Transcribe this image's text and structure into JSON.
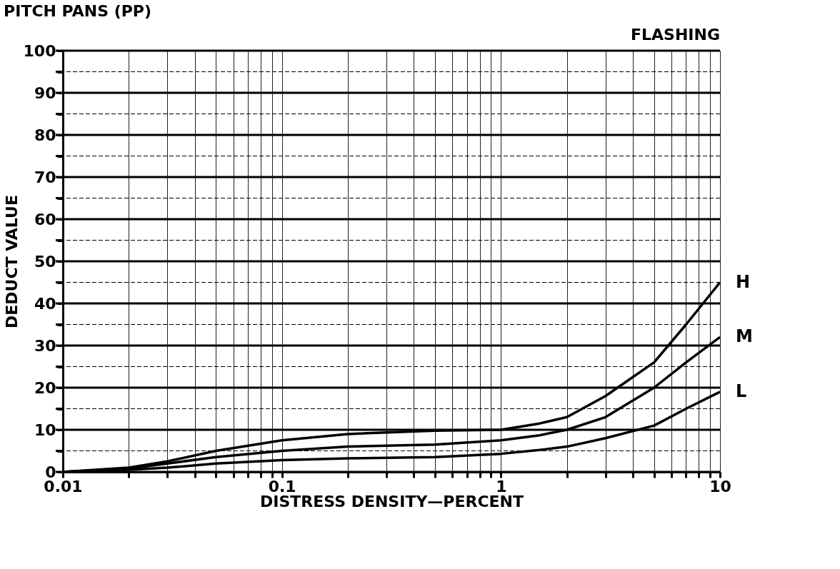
{
  "chart_data": {
    "type": "line",
    "title": "PITCH PANS (PP)",
    "annotations": [
      "FLASHING"
    ],
    "xlabel": "DISTRESS DENSITY—PERCENT",
    "ylabel": "DEDUCT VALUE",
    "log": "x",
    "grid": true,
    "legend": false,
    "marker": "none",
    "line_style": "solid",
    "x": [
      0.01,
      0.02,
      0.03,
      0.05,
      0.1,
      0.2,
      0.5,
      1,
      1.5,
      2,
      3,
      5,
      7,
      10
    ],
    "series": [
      {
        "name": "H",
        "color": "#000000",
        "values": [
          0,
          1,
          2.5,
          5,
          7.5,
          9,
          9.8,
          10,
          11.5,
          13,
          18,
          26,
          35,
          45
        ]
      },
      {
        "name": "M",
        "color": "#000000",
        "values": [
          0,
          0.8,
          2,
          3.5,
          5,
          6,
          6.5,
          7.5,
          8.7,
          10,
          13,
          20,
          26,
          32
        ]
      },
      {
        "name": "L",
        "color": "#000000",
        "values": [
          0,
          0.5,
          1,
          2,
          2.8,
          3.2,
          3.5,
          4.3,
          5.2,
          6,
          8,
          11,
          15,
          19
        ]
      }
    ],
    "xlim": [
      0.01,
      10
    ],
    "ylim": [
      0,
      100
    ],
    "xticks": [
      0.01,
      {
        "value": 0.02,
        "label": null
      },
      {
        "value": 0.03,
        "label": null
      },
      {
        "value": 0.04,
        "label": null
      },
      {
        "value": 0.05,
        "label": null
      },
      {
        "value": 0.06,
        "label": null
      },
      {
        "value": 0.07,
        "label": null
      },
      {
        "value": 0.08,
        "label": null
      },
      {
        "value": 0.09,
        "label": null
      },
      0.1,
      {
        "value": 0.2,
        "label": null
      },
      {
        "value": 0.3,
        "label": null
      },
      {
        "value": 0.4,
        "label": null
      },
      {
        "value": 0.5,
        "label": null
      },
      {
        "value": 0.6,
        "label": null
      },
      {
        "value": 0.7,
        "label": null
      },
      {
        "value": 0.8,
        "label": null
      },
      {
        "value": 0.9,
        "label": null
      },
      1,
      {
        "value": 2,
        "label": null
      },
      {
        "value": 3,
        "label": null
      },
      {
        "value": 4,
        "label": null
      },
      {
        "value": 5,
        "label": null
      },
      {
        "value": 6,
        "label": null
      },
      {
        "value": 7,
        "label": null
      },
      {
        "value": 8,
        "label": null
      },
      {
        "value": 9,
        "label": null
      },
      10
    ],
    "yticks": [
      0,
      {
        "value": 5,
        "label": null
      },
      10,
      {
        "value": 15,
        "label": null
      },
      20,
      {
        "value": 25,
        "label": null
      },
      30,
      {
        "value": 35,
        "label": null
      },
      40,
      {
        "value": 45,
        "label": null
      },
      50,
      {
        "value": 55,
        "label": null
      },
      60,
      {
        "value": 65,
        "label": null
      },
      70,
      {
        "value": 75,
        "label": null
      },
      80,
      {
        "value": 85,
        "label": null
      },
      90,
      {
        "value": 95,
        "label": null
      },
      100
    ]
  }
}
